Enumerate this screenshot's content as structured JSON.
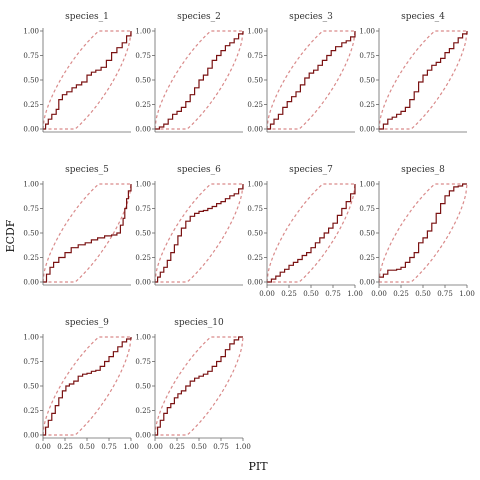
{
  "chart_data": {
    "type": "line",
    "xlabel": "PIT",
    "ylabel": "ECDF",
    "xlim": [
      0,
      1
    ],
    "ylim": [
      0,
      1
    ],
    "x_ticks": [
      "0.00",
      "0.25",
      "0.50",
      "0.75",
      "1.00"
    ],
    "y_ticks": [
      "0.00",
      "0.25",
      "0.50",
      "0.75",
      "1.00"
    ],
    "grid": false,
    "colors": {
      "ecdf": "#7a1212",
      "band": "#d98a8a",
      "axis": "#666666"
    },
    "panels": [
      {
        "title": "species_1",
        "x": [
          0,
          0.03,
          0.06,
          0.1,
          0.15,
          0.18,
          0.22,
          0.27,
          0.33,
          0.38,
          0.44,
          0.5,
          0.55,
          0.6,
          0.66,
          0.72,
          0.78,
          0.84,
          0.9,
          0.95,
          1
        ],
        "y": [
          0,
          0.05,
          0.1,
          0.15,
          0.2,
          0.3,
          0.35,
          0.38,
          0.42,
          0.45,
          0.48,
          0.55,
          0.58,
          0.6,
          0.63,
          0.7,
          0.78,
          0.83,
          0.88,
          0.95,
          1
        ]
      },
      {
        "title": "species_2",
        "x": [
          0,
          0.05,
          0.1,
          0.15,
          0.2,
          0.25,
          0.3,
          0.35,
          0.4,
          0.45,
          0.5,
          0.55,
          0.6,
          0.65,
          0.7,
          0.75,
          0.8,
          0.85,
          0.9,
          0.95,
          1
        ],
        "y": [
          0,
          0.02,
          0.05,
          0.1,
          0.15,
          0.18,
          0.22,
          0.28,
          0.35,
          0.42,
          0.5,
          0.55,
          0.62,
          0.7,
          0.75,
          0.8,
          0.85,
          0.88,
          0.92,
          0.97,
          1
        ]
      },
      {
        "title": "species_3",
        "x": [
          0,
          0.04,
          0.08,
          0.13,
          0.18,
          0.23,
          0.28,
          0.33,
          0.38,
          0.43,
          0.48,
          0.53,
          0.58,
          0.63,
          0.68,
          0.73,
          0.78,
          0.85,
          0.9,
          0.95,
          1
        ],
        "y": [
          0,
          0.05,
          0.1,
          0.15,
          0.22,
          0.28,
          0.33,
          0.38,
          0.45,
          0.52,
          0.57,
          0.6,
          0.65,
          0.7,
          0.75,
          0.8,
          0.84,
          0.88,
          0.9,
          0.94,
          1
        ]
      },
      {
        "title": "species_4",
        "x": [
          0,
          0.05,
          0.1,
          0.15,
          0.2,
          0.25,
          0.3,
          0.35,
          0.4,
          0.45,
          0.5,
          0.55,
          0.6,
          0.65,
          0.7,
          0.75,
          0.8,
          0.85,
          0.9,
          0.95,
          1
        ],
        "y": [
          0,
          0.05,
          0.1,
          0.12,
          0.15,
          0.18,
          0.22,
          0.3,
          0.38,
          0.48,
          0.55,
          0.6,
          0.65,
          0.68,
          0.72,
          0.78,
          0.82,
          0.88,
          0.93,
          0.97,
          1
        ]
      },
      {
        "title": "species_5",
        "x": [
          0,
          0.04,
          0.08,
          0.12,
          0.18,
          0.25,
          0.32,
          0.4,
          0.48,
          0.55,
          0.62,
          0.7,
          0.78,
          0.84,
          0.88,
          0.91,
          0.93,
          0.95,
          0.97,
          1
        ],
        "y": [
          0,
          0.08,
          0.15,
          0.2,
          0.25,
          0.3,
          0.35,
          0.38,
          0.4,
          0.43,
          0.45,
          0.47,
          0.48,
          0.5,
          0.58,
          0.65,
          0.75,
          0.85,
          0.93,
          1
        ]
      },
      {
        "title": "species_6",
        "x": [
          0,
          0.03,
          0.06,
          0.1,
          0.14,
          0.18,
          0.22,
          0.26,
          0.3,
          0.35,
          0.4,
          0.45,
          0.5,
          0.55,
          0.6,
          0.65,
          0.7,
          0.75,
          0.8,
          0.85,
          0.9,
          0.95,
          1
        ],
        "y": [
          0,
          0.05,
          0.1,
          0.15,
          0.22,
          0.3,
          0.38,
          0.47,
          0.55,
          0.62,
          0.67,
          0.7,
          0.72,
          0.73,
          0.75,
          0.77,
          0.8,
          0.82,
          0.85,
          0.88,
          0.9,
          0.95,
          1
        ]
      },
      {
        "title": "species_7",
        "x": [
          0,
          0.05,
          0.1,
          0.15,
          0.2,
          0.25,
          0.3,
          0.35,
          0.4,
          0.45,
          0.5,
          0.55,
          0.6,
          0.65,
          0.7,
          0.75,
          0.8,
          0.85,
          0.9,
          0.95,
          1
        ],
        "y": [
          0,
          0.03,
          0.06,
          0.1,
          0.13,
          0.17,
          0.2,
          0.23,
          0.27,
          0.3,
          0.35,
          0.4,
          0.45,
          0.5,
          0.55,
          0.6,
          0.68,
          0.75,
          0.82,
          0.9,
          1
        ]
      },
      {
        "title": "species_8",
        "x": [
          0,
          0.05,
          0.1,
          0.15,
          0.2,
          0.25,
          0.3,
          0.35,
          0.4,
          0.45,
          0.5,
          0.55,
          0.6,
          0.65,
          0.7,
          0.75,
          0.8,
          0.85,
          0.9,
          0.95,
          1
        ],
        "y": [
          0.05,
          0.08,
          0.12,
          0.12,
          0.13,
          0.15,
          0.2,
          0.25,
          0.3,
          0.4,
          0.45,
          0.52,
          0.6,
          0.7,
          0.8,
          0.88,
          0.93,
          0.97,
          0.98,
          1,
          1
        ]
      },
      {
        "title": "species_9",
        "x": [
          0,
          0.03,
          0.06,
          0.1,
          0.14,
          0.18,
          0.22,
          0.26,
          0.3,
          0.35,
          0.4,
          0.45,
          0.5,
          0.55,
          0.6,
          0.65,
          0.7,
          0.75,
          0.8,
          0.85,
          0.9,
          0.95,
          1
        ],
        "y": [
          0,
          0.08,
          0.15,
          0.22,
          0.3,
          0.38,
          0.45,
          0.5,
          0.52,
          0.55,
          0.6,
          0.62,
          0.63,
          0.65,
          0.66,
          0.7,
          0.75,
          0.8,
          0.85,
          0.9,
          0.95,
          0.98,
          1
        ]
      },
      {
        "title": "species_10",
        "x": [
          0,
          0.03,
          0.06,
          0.1,
          0.14,
          0.18,
          0.22,
          0.26,
          0.3,
          0.35,
          0.4,
          0.45,
          0.5,
          0.55,
          0.6,
          0.65,
          0.7,
          0.75,
          0.8,
          0.85,
          0.9,
          0.95,
          1
        ],
        "y": [
          0,
          0.08,
          0.15,
          0.22,
          0.28,
          0.32,
          0.38,
          0.42,
          0.45,
          0.5,
          0.55,
          0.58,
          0.6,
          0.62,
          0.65,
          0.7,
          0.75,
          0.8,
          0.87,
          0.93,
          0.97,
          1,
          1
        ]
      }
    ]
  }
}
